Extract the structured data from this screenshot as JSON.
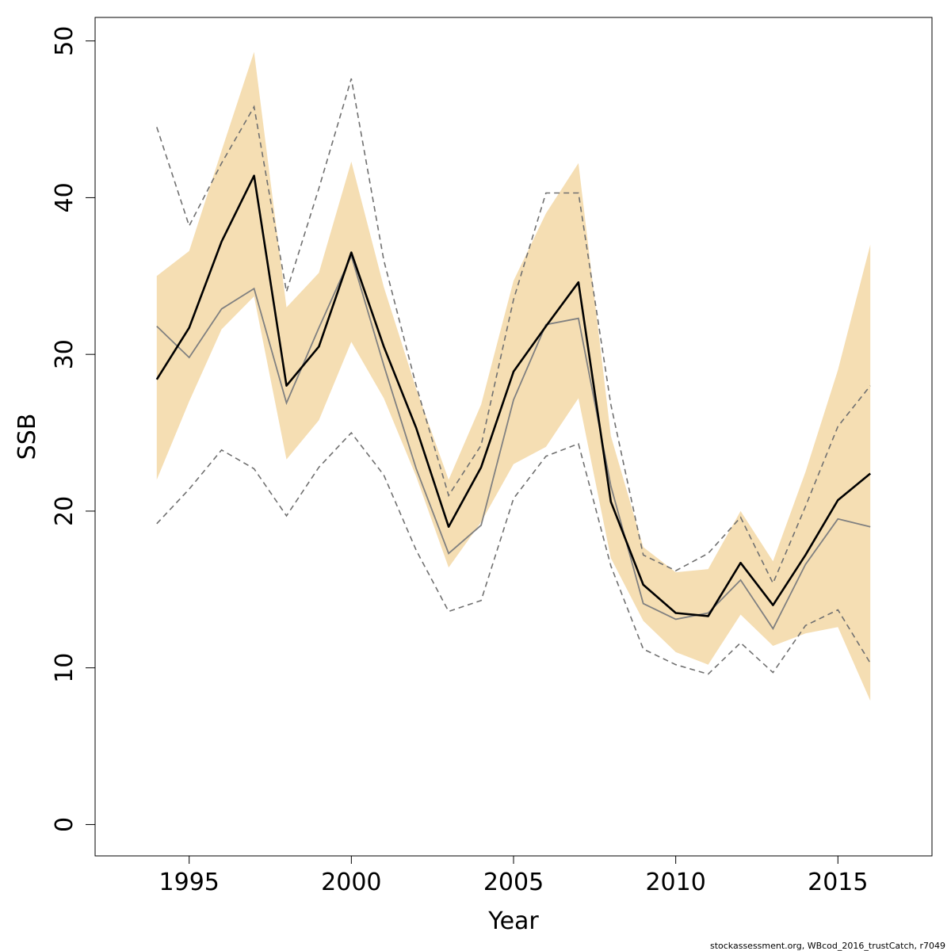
{
  "chart_data": {
    "type": "line",
    "title": "",
    "xlabel": "Year",
    "ylabel": "SSB",
    "xlim": [
      1992.1,
      2017.9
    ],
    "ylim": [
      -2,
      51.5
    ],
    "x_ticks": [
      1995,
      2000,
      2005,
      2010,
      2015
    ],
    "y_ticks": [
      0,
      10,
      20,
      30,
      40,
      50
    ],
    "x_tick_labels": [
      "1995",
      "2000",
      "2005",
      "2010",
      "2015"
    ],
    "y_tick_labels": [
      "0",
      "10",
      "20",
      "30",
      "40",
      "50"
    ],
    "grid": false,
    "legend": "none",
    "footer": "stockassessment.org, WBcod_2016_trustCatch, r7049",
    "x": [
      1994,
      1995,
      1996,
      1997,
      1998,
      1999,
      2000,
      2001,
      2002,
      2003,
      2004,
      2005,
      2006,
      2007,
      2008,
      2009,
      2010,
      2011,
      2012,
      2013,
      2014,
      2015,
      2016
    ],
    "series": [
      {
        "style": "confidence-band",
        "color": "#F5DEB3",
        "lower": [
          22.0,
          27.0,
          31.6,
          33.7,
          23.3,
          25.8,
          30.8,
          27.2,
          22.2,
          16.4,
          19.3,
          23.0,
          24.1,
          27.2,
          17.0,
          13.0,
          11.0,
          10.2,
          13.4,
          11.4,
          12.2,
          12.6,
          7.9
        ],
        "upper": [
          35.0,
          36.6,
          43.0,
          49.3,
          33.0,
          35.2,
          42.3,
          34.3,
          27.8,
          22.0,
          26.8,
          34.7,
          39.0,
          42.2,
          24.8,
          17.7,
          16.1,
          16.3,
          20.0,
          16.8,
          22.5,
          29.0,
          37.0
        ]
      },
      {
        "style": "dashed",
        "color": "#707070",
        "values": [
          44.5,
          38.2,
          42.2,
          45.8,
          34.0,
          40.6,
          47.6,
          36.0,
          28.0,
          21.0,
          24.2,
          33.5,
          40.3,
          40.3,
          26.8,
          17.2,
          16.2,
          17.3,
          19.6,
          15.4,
          20.3,
          25.4,
          28.0
        ]
      },
      {
        "style": "dashed",
        "color": "#707070",
        "values": [
          19.2,
          21.4,
          23.9,
          22.7,
          19.7,
          22.8,
          25.0,
          22.3,
          17.5,
          13.6,
          14.3,
          20.8,
          23.5,
          24.3,
          16.5,
          11.2,
          10.2,
          9.6,
          11.6,
          9.7,
          12.7,
          13.7,
          10.3
        ]
      },
      {
        "style": "thin",
        "color": "#808080",
        "values": [
          31.8,
          29.8,
          32.9,
          34.2,
          26.9,
          31.7,
          36.3,
          29.3,
          22.7,
          17.3,
          19.1,
          27.1,
          31.9,
          32.3,
          21.6,
          14.1,
          13.1,
          13.5,
          15.6,
          12.5,
          16.6,
          19.5,
          19.0
        ]
      },
      {
        "style": "bold",
        "color": "#000000",
        "values": [
          28.4,
          31.7,
          37.2,
          41.4,
          28.0,
          30.5,
          36.5,
          30.5,
          25.3,
          19.0,
          22.8,
          28.9,
          31.8,
          34.6,
          20.6,
          15.3,
          13.5,
          13.3,
          16.7,
          14.0,
          17.2,
          20.7,
          22.4
        ]
      }
    ]
  }
}
